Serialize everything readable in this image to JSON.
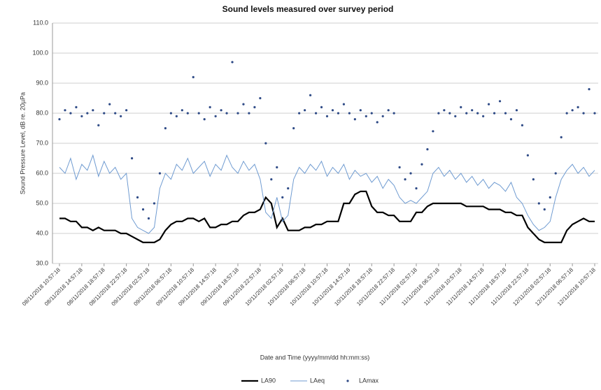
{
  "chart_data": {
    "type": "line",
    "title": "Sound levels measured over survey period",
    "y_label": "Sound Pressure Level, dB re. 20µPa",
    "x_label": "Date and Time (yyyy/mm/dd hh:mm:ss)",
    "categories": [
      "08/11/2018 10:57:18",
      null,
      null,
      null,
      "08/11/2018 14:57:18",
      null,
      null,
      null,
      "08/11/2018 18:57:18",
      null,
      null,
      null,
      "08/11/2018 22:57:18",
      null,
      null,
      null,
      "09/11/2018 02:57:18",
      null,
      null,
      null,
      "09/11/2018 06:57:18",
      null,
      null,
      null,
      "09/11/2018 10:57:18",
      null,
      null,
      null,
      "09/11/2018 14:57:18",
      null,
      null,
      null,
      "09/11/2018 18:57:18",
      null,
      null,
      null,
      "09/11/2018 22:57:18",
      null,
      null,
      null,
      "10/11/2018 02:57:18",
      null,
      null,
      null,
      "10/11/2018 06:57:18",
      null,
      null,
      null,
      "10/11/2018 10:57:18",
      null,
      null,
      null,
      "10/11/2018 14:57:18",
      null,
      null,
      null,
      "10/11/2018 18:57:18",
      null,
      null,
      null,
      "10/11/2018 22:57:18",
      null,
      null,
      null,
      "11/11/2018 02:57:18",
      null,
      null,
      null,
      "11/11/2018 06:57:18",
      null,
      null,
      null,
      "11/11/2018 10:57:18",
      null,
      null,
      null,
      "11/11/2018 14:57:18",
      null,
      null,
      null,
      "11/11/2018 18:57:18",
      null,
      null,
      null,
      "11/11/2018 22:57:18",
      null,
      null,
      null,
      "12/11/2018 02:57:18",
      null,
      null,
      null,
      "12/11/2018 06:57:18",
      null,
      null,
      null,
      "12/11/2018 10:57:18"
    ],
    "series": [
      {
        "name": "LA90",
        "color": "#000000",
        "style": "line",
        "width": 2.2,
        "values": [
          45,
          45,
          44,
          44,
          42,
          42,
          41,
          42,
          41,
          41,
          41,
          40,
          40,
          39,
          38,
          37,
          37,
          37,
          38,
          41,
          43,
          44,
          44,
          45,
          45,
          44,
          45,
          42,
          42,
          43,
          43,
          44,
          44,
          46,
          47,
          47,
          48,
          52,
          50,
          42,
          45,
          41,
          41,
          41,
          42,
          42,
          43,
          43,
          44,
          44,
          44,
          50,
          50,
          53,
          54,
          54,
          49,
          47,
          47,
          46,
          46,
          44,
          44,
          44,
          47,
          47,
          49,
          50,
          50,
          50,
          50,
          50,
          50,
          49,
          49,
          49,
          49,
          48,
          48,
          48,
          47,
          47,
          46,
          46,
          42,
          40,
          38,
          37,
          37,
          37,
          37,
          41,
          43,
          44,
          45,
          44,
          44
        ]
      },
      {
        "name": "LAeq",
        "color": "#6f9bd1",
        "style": "line",
        "width": 1,
        "values": [
          62,
          60,
          65,
          58,
          63,
          61,
          66,
          59,
          64,
          60,
          62,
          58,
          60,
          45,
          42,
          41,
          40,
          42,
          55,
          60,
          58,
          63,
          61,
          65,
          60,
          62,
          64,
          59,
          63,
          61,
          66,
          62,
          60,
          64,
          61,
          63,
          58,
          47,
          45,
          52,
          44,
          46,
          58,
          62,
          60,
          63,
          61,
          64,
          59,
          62,
          60,
          63,
          58,
          61,
          59,
          60,
          57,
          59,
          55,
          58,
          56,
          52,
          50,
          51,
          50,
          52,
          54,
          60,
          62,
          59,
          61,
          58,
          60,
          57,
          59,
          56,
          58,
          55,
          57,
          56,
          54,
          57,
          52,
          50,
          46,
          43,
          41,
          42,
          44,
          52,
          58,
          61,
          63,
          60,
          62,
          59,
          61
        ]
      },
      {
        "name": "LAmax",
        "color": "#2e4a86",
        "style": "markers",
        "values": [
          78,
          81,
          80,
          82,
          79,
          80,
          81,
          76,
          80,
          83,
          80,
          79,
          81,
          65,
          52,
          48,
          45,
          50,
          60,
          75,
          80,
          79,
          81,
          80,
          92,
          80,
          78,
          82,
          79,
          81,
          80,
          97,
          80,
          83,
          80,
          82,
          85,
          70,
          58,
          62,
          52,
          55,
          75,
          80,
          81,
          86,
          80,
          82,
          79,
          81,
          80,
          83,
          80,
          78,
          81,
          79,
          80,
          77,
          79,
          81,
          80,
          62,
          58,
          60,
          55,
          63,
          68,
          74,
          80,
          81,
          80,
          79,
          82,
          80,
          81,
          80,
          79,
          83,
          80,
          84,
          80,
          78,
          81,
          76,
          66,
          58,
          50,
          48,
          52,
          60,
          72,
          80,
          81,
          82,
          80,
          88,
          80
        ]
      }
    ],
    "ylim": [
      30,
      110
    ],
    "yticks": [
      {
        "value": 30,
        "label": "30.0"
      },
      {
        "value": 40,
        "label": "40.0"
      },
      {
        "value": 50,
        "label": "50.0"
      },
      {
        "value": 60,
        "label": "60.0"
      },
      {
        "value": 70,
        "label": "70.0"
      },
      {
        "value": 80,
        "label": "80.0"
      },
      {
        "value": 90,
        "label": "90.0"
      },
      {
        "value": 100,
        "label": "100.0"
      },
      {
        "value": 110,
        "label": "110.0"
      }
    ],
    "grid": true,
    "legend": "bottom"
  }
}
